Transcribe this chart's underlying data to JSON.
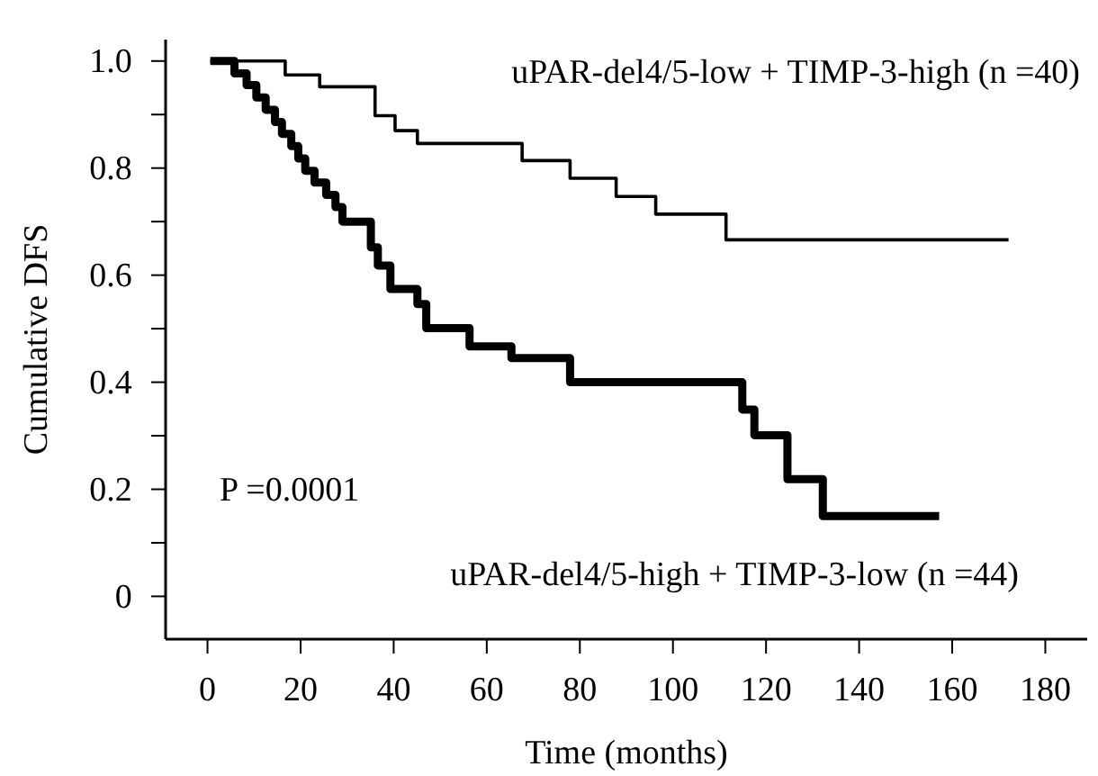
{
  "chart_data": {
    "type": "step",
    "xlabel": "Time (months)",
    "ylabel": "Cumulative DFS",
    "xlim": [
      -9,
      189
    ],
    "ylim": [
      -0.08,
      1.04
    ],
    "xticks": [
      0,
      20,
      40,
      60,
      80,
      100,
      120,
      140,
      160,
      180
    ],
    "yticks": [
      {
        "value": 0,
        "label": "0"
      },
      {
        "value": 0.1,
        "label": null
      },
      {
        "value": 0.2,
        "label": "0.2"
      },
      {
        "value": 0.3,
        "label": null
      },
      {
        "value": 0.4,
        "label": "0.4"
      },
      {
        "value": 0.5,
        "label": null
      },
      {
        "value": 0.6,
        "label": "0.6"
      },
      {
        "value": 0.7,
        "label": null
      },
      {
        "value": 0.8,
        "label": "0.8"
      },
      {
        "value": 0.9,
        "label": null
      },
      {
        "value": 1.0,
        "label": "1.0"
      }
    ],
    "grid": false,
    "marker": "none",
    "line_style": "solid",
    "annotations": [
      "P =0.0001"
    ],
    "series": [
      {
        "name": "uPAR-del4/5-low + TIMP-3-high (n =40)",
        "color": "#000000",
        "x": [
          0.6,
          16.7,
          24.1,
          36.0,
          40.3,
          45.1,
          67.6,
          77.9,
          87.8,
          96.3,
          111.4,
          172.1
        ],
        "values": [
          1.0,
          0.974,
          0.952,
          0.898,
          0.87,
          0.846,
          0.814,
          0.781,
          0.747,
          0.714,
          0.666,
          0.666
        ]
      },
      {
        "name": "uPAR-del4/5-high + TIMP-3-low (n =44)",
        "color": "#000000",
        "x": [
          0.6,
          5.8,
          8.4,
          10.5,
          12.5,
          14.5,
          16,
          18,
          19.5,
          21,
          23,
          25.5,
          27.5,
          29,
          35.1,
          36.6,
          39.3,
          45.1,
          47,
          56.3,
          65.3,
          77.9,
          114.9,
          117.5,
          124.6,
          132.2,
          157.2
        ],
        "values": [
          1.0,
          0.977,
          0.955,
          0.932,
          0.909,
          0.886,
          0.864,
          0.841,
          0.818,
          0.795,
          0.773,
          0.75,
          0.727,
          0.7,
          0.652,
          0.618,
          0.574,
          0.546,
          0.501,
          0.467,
          0.445,
          0.4,
          0.349,
          0.301,
          0.219,
          0.15,
          0.15
        ]
      }
    ]
  }
}
